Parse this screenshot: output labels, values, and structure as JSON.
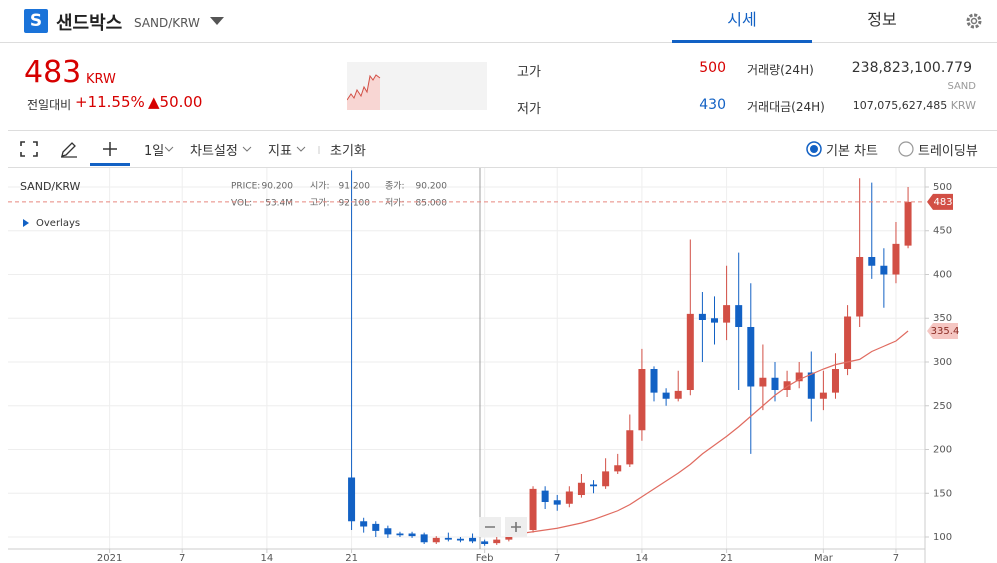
{
  "header": {
    "logo": "S",
    "title": "샌드박스",
    "pair": "SAND/KRW",
    "tabs": [
      "시세",
      "정보"
    ]
  },
  "ticker": {
    "price": "483",
    "currency": "KRW",
    "change_label": "전일대비",
    "change_rate": "+11.55%",
    "change_amount": "▲50.00",
    "high_label": "고가",
    "high": "500",
    "low_label": "저가",
    "low": "430",
    "volume_label": "거래량(24H)",
    "volume": "238,823,100.779",
    "volume_unit": "SAND",
    "value_label": "거래대금(24H)",
    "value": "107,075,627,485",
    "value_unit": "KRW"
  },
  "toolbar": {
    "interval": "1일",
    "settings": "차트설정",
    "indicators": "지표",
    "reset": "초기화",
    "chart_types": [
      "기본 차트",
      "트레이딩뷰"
    ]
  },
  "chart_data": {
    "type": "candlestick",
    "legend_label": "SAND/KRW",
    "overlays": "Overlays",
    "info": [
      [
        "PRICE:",
        "90.200"
      ],
      [
        "시가:",
        "91.200"
      ],
      [
        "종가:",
        "90.200"
      ],
      [
        "VOL:",
        "53.4M"
      ],
      [
        "고가:",
        "92.100"
      ],
      [
        "저가:",
        "85.000"
      ]
    ],
    "up_color": "#d24f45",
    "down_color": "#1261c4",
    "x": [
      0,
      1,
      2,
      3,
      4,
      5,
      6,
      7,
      8,
      9,
      10,
      11,
      12,
      13,
      14,
      15,
      16,
      17,
      18,
      19,
      20,
      21,
      22,
      23,
      24,
      25,
      26,
      27,
      28,
      29,
      30,
      31,
      32,
      33,
      34,
      35,
      36,
      37,
      38,
      39,
      40,
      41,
      42,
      43,
      44,
      45,
      46
    ],
    "open": [
      168,
      118,
      115,
      110,
      104,
      104,
      103,
      94,
      99,
      98,
      99,
      95,
      93,
      97,
      102,
      108,
      153,
      142,
      138,
      148,
      160,
      158,
      175,
      183,
      222,
      292,
      265,
      258,
      268,
      355,
      350,
      345,
      365,
      340,
      272,
      282,
      268,
      278,
      288,
      258,
      265,
      292,
      352,
      420,
      410,
      400,
      433
    ],
    "high": [
      519,
      122,
      118,
      113,
      106,
      106,
      105,
      101,
      105,
      100,
      104,
      97,
      101,
      105,
      110,
      158,
      158,
      148,
      158,
      172,
      165,
      190,
      195,
      240,
      315,
      295,
      270,
      290,
      440,
      380,
      375,
      410,
      425,
      390,
      320,
      300,
      290,
      300,
      312,
      290,
      310,
      365,
      510,
      505,
      430,
      460,
      500
    ],
    "low": [
      108,
      105,
      100,
      99,
      100,
      99,
      92,
      92,
      95,
      94,
      93,
      90,
      91,
      95,
      100,
      105,
      132,
      130,
      134,
      145,
      150,
      155,
      172,
      180,
      210,
      255,
      250,
      255,
      262,
      300,
      320,
      325,
      268,
      195,
      245,
      255,
      260,
      270,
      232,
      245,
      258,
      285,
      340,
      395,
      362,
      390,
      430
    ],
    "close": [
      118,
      112,
      107,
      103,
      102,
      101,
      94,
      99,
      97,
      96,
      95,
      92,
      97,
      102,
      108,
      155,
      140,
      137,
      152,
      162,
      158,
      175,
      182,
      222,
      292,
      265,
      258,
      267,
      355,
      348,
      345,
      365,
      340,
      272,
      282,
      268,
      278,
      288,
      258,
      265,
      292,
      352,
      420,
      410,
      400,
      435,
      483
    ],
    "ma": {
      "color": "#e06b60",
      "values": [
        null,
        null,
        null,
        null,
        null,
        null,
        null,
        null,
        null,
        null,
        null,
        null,
        null,
        null,
        104,
        106,
        108,
        110,
        113,
        116,
        120,
        125,
        130,
        137,
        146,
        155,
        164,
        173,
        183,
        195,
        205,
        215,
        226,
        238,
        250,
        262,
        272,
        280,
        286,
        292,
        297,
        300,
        303,
        312,
        318,
        324,
        335.4
      ]
    },
    "xlim": [
      -28.4,
      47.4
    ],
    "xticks": [
      {
        "value": -20,
        "label": "2021"
      },
      {
        "value": -14,
        "label": "7"
      },
      {
        "value": -7,
        "label": "14"
      },
      {
        "value": 0,
        "label": "21"
      },
      {
        "value": 11,
        "label": "Feb"
      },
      {
        "value": 17,
        "label": "7"
      },
      {
        "value": 24,
        "label": "14"
      },
      {
        "value": 31,
        "label": "21"
      },
      {
        "value": 39,
        "label": "Mar"
      },
      {
        "value": 45,
        "label": "7"
      }
    ],
    "ylim": [
      86.3,
      521.7
    ],
    "yticks": [
      100,
      150,
      200,
      250,
      300,
      350,
      400,
      450,
      500
    ],
    "grid": true
  }
}
